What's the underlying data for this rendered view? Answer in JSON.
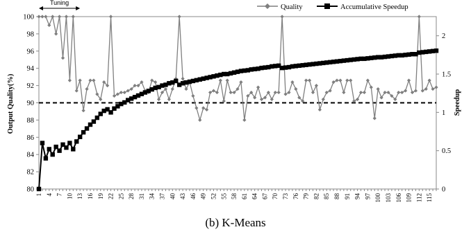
{
  "chart_data": {
    "type": "line",
    "title": "",
    "caption": "(b) K-Means",
    "ylabel_left": "Output Quality(%)",
    "ylabel_right": "Speedup",
    "ylim_left": [
      80,
      100
    ],
    "ylim_right": [
      0,
      2.25
    ],
    "yticks_left": [
      "80",
      "82",
      "84",
      "86",
      "88",
      "90",
      "92",
      "94",
      "96",
      "98",
      "100"
    ],
    "yticks_right": [
      "0",
      "0.5",
      "1",
      "1.5",
      "2"
    ],
    "legend_position": "top-center",
    "tuning_label": "Tuning",
    "tuning_range": [
      1,
      13
    ],
    "threshold_quality": 90,
    "xlim": [
      1,
      117
    ],
    "x_tick_labels": [
      "1",
      "4",
      "7",
      "10",
      "13",
      "16",
      "19",
      "22",
      "25",
      "28",
      "31",
      "34",
      "37",
      "40",
      "43",
      "46",
      "49",
      "52",
      "55",
      "58",
      "61",
      "64",
      "67",
      "70",
      "73",
      "76",
      "79",
      "82",
      "85",
      "88",
      "91",
      "94",
      "97",
      "100",
      "103",
      "106",
      "109",
      "112",
      "115"
    ],
    "series": [
      {
        "name": "Quality",
        "axis": "left",
        "color": "#7f7f7f",
        "marker": "diamond",
        "values": [
          100,
          100,
          100,
          99,
          100,
          98,
          100,
          95.2,
          100,
          92.6,
          100,
          91.4,
          92.6,
          89.1,
          91.6,
          92.6,
          92.6,
          91.0,
          90.4,
          92.4,
          92.0,
          100,
          90.8,
          91.0,
          91.2,
          91.2,
          91.4,
          91.6,
          92.0,
          92.0,
          92.4,
          91.4,
          91.2,
          92.6,
          92.4,
          90.4,
          91.2,
          91.6,
          90.4,
          91.6,
          92.8,
          100,
          92.8,
          91.6,
          92.4,
          90.8,
          89.4,
          88.0,
          89.4,
          89.2,
          91.2,
          91.4,
          91.2,
          92.6,
          90.2,
          92.6,
          91.2,
          91.2,
          91.6,
          92.4,
          88.0,
          90.8,
          91.2,
          90.6,
          91.8,
          90.4,
          90.6,
          91.2,
          90.4,
          91.2,
          91.2,
          100,
          91.0,
          91.2,
          92.4,
          91.6,
          90.6,
          90.2,
          92.6,
          92.6,
          91.2,
          92.0,
          89.2,
          90.4,
          91.2,
          91.4,
          92.4,
          92.6,
          92.6,
          91.2,
          92.6,
          92.6,
          90.2,
          90.4,
          91.2,
          91.2,
          92.6,
          91.8,
          88.2,
          91.6,
          90.6,
          91.2,
          91.2,
          90.8,
          90.4,
          91.2,
          91.2,
          91.4,
          92.6,
          91.2,
          91.4,
          100,
          91.4,
          91.6,
          92.6,
          91.6,
          91.8
        ]
      },
      {
        "name": "Accumulative Speedup",
        "axis": "right",
        "color": "#000000",
        "marker": "square",
        "values": [
          0,
          0.6,
          0.4,
          0.52,
          0.45,
          0.55,
          0.5,
          0.58,
          0.54,
          0.6,
          0.52,
          0.62,
          0.68,
          0.74,
          0.79,
          0.84,
          0.88,
          0.93,
          0.98,
          1.02,
          1.04,
          1.0,
          1.05,
          1.08,
          1.11,
          1.13,
          1.16,
          1.18,
          1.2,
          1.22,
          1.24,
          1.26,
          1.28,
          1.3,
          1.32,
          1.33,
          1.35,
          1.36,
          1.38,
          1.39,
          1.41,
          1.36,
          1.38,
          1.39,
          1.4,
          1.41,
          1.42,
          1.43,
          1.44,
          1.45,
          1.46,
          1.47,
          1.48,
          1.49,
          1.5,
          1.5,
          1.51,
          1.52,
          1.53,
          1.54,
          1.545,
          1.55,
          1.56,
          1.565,
          1.57,
          1.58,
          1.585,
          1.59,
          1.6,
          1.605,
          1.61,
          1.58,
          1.585,
          1.59,
          1.6,
          1.605,
          1.61,
          1.615,
          1.62,
          1.625,
          1.63,
          1.635,
          1.64,
          1.645,
          1.65,
          1.655,
          1.66,
          1.665,
          1.67,
          1.675,
          1.68,
          1.685,
          1.69,
          1.695,
          1.7,
          1.7,
          1.705,
          1.71,
          1.715,
          1.72,
          1.72,
          1.725,
          1.73,
          1.735,
          1.74,
          1.745,
          1.745,
          1.75,
          1.755,
          1.76,
          1.76,
          1.78,
          1.785,
          1.79,
          1.795,
          1.8,
          1.805
        ]
      }
    ]
  }
}
